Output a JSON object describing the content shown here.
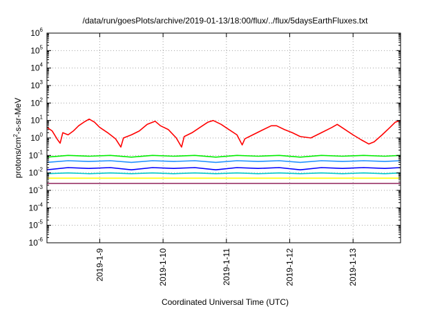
{
  "chart_data": {
    "type": "line",
    "title": "/data/run/goesPlots/archive/2019-01-13/18:00/flux/../flux/5daysEarthFluxes.txt",
    "xlabel": "Coordinated Universal Time (UTC)",
    "ylabel": {
      "base": "protons/cm",
      "sup": "2",
      "rest": "-s-sr-MeV"
    },
    "yscale": "log",
    "ylim": [
      1e-06,
      1000000.0
    ],
    "xlim": [
      "2019-01-08T04:00",
      "2019-01-13T18:00"
    ],
    "grid": true,
    "legend": "none",
    "yticks": [
      {
        "base": "10",
        "exp": "-6"
      },
      {
        "base": "10",
        "exp": "-5"
      },
      {
        "base": "10",
        "exp": "-4"
      },
      {
        "base": "10",
        "exp": "-3"
      },
      {
        "base": "10",
        "exp": "-2"
      },
      {
        "base": "10",
        "exp": "-1"
      },
      {
        "base": "10",
        "exp": "0"
      },
      {
        "base": "10",
        "exp": "1"
      },
      {
        "base": "10",
        "exp": "2"
      },
      {
        "base": "10",
        "exp": "3"
      },
      {
        "base": "10",
        "exp": "4"
      },
      {
        "base": "10",
        "exp": "5"
      },
      {
        "base": "10",
        "exp": "6"
      }
    ],
    "xticks": [
      "2019-1-9",
      "2019-1-10",
      "2019-1-11",
      "2019-1-12",
      "2019-1-13"
    ],
    "series": [
      {
        "color": "#ff0000",
        "points": [
          [
            "2019-01-08T04:00",
            4.0
          ],
          [
            "2019-01-08T06:00",
            2.5
          ],
          [
            "2019-01-08T08:00",
            0.8
          ],
          [
            "2019-01-08T09:00",
            0.5
          ],
          [
            "2019-01-08T10:00",
            2.0
          ],
          [
            "2019-01-08T12:00",
            1.5
          ],
          [
            "2019-01-08T14:00",
            2.5
          ],
          [
            "2019-01-08T16:00",
            5.0
          ],
          [
            "2019-01-08T18:00",
            8.0
          ],
          [
            "2019-01-08T20:00",
            12.0
          ],
          [
            "2019-01-08T22:00",
            8.0
          ],
          [
            "2019-01-09T00:00",
            4.0
          ],
          [
            "2019-01-09T03:00",
            2.0
          ],
          [
            "2019-01-09T06:00",
            0.9
          ],
          [
            "2019-01-09T08:00",
            0.3
          ],
          [
            "2019-01-09T09:00",
            1.0
          ],
          [
            "2019-01-09T12:00",
            1.5
          ],
          [
            "2019-01-09T15:00",
            2.5
          ],
          [
            "2019-01-09T18:00",
            6.0
          ],
          [
            "2019-01-09T21:00",
            9.0
          ],
          [
            "2019-01-09T23:00",
            5.0
          ],
          [
            "2019-01-10T02:00",
            3.0
          ],
          [
            "2019-01-10T05:00",
            1.0
          ],
          [
            "2019-01-10T07:00",
            0.3
          ],
          [
            "2019-01-10T08:00",
            1.2
          ],
          [
            "2019-01-10T11:00",
            2.0
          ],
          [
            "2019-01-10T14:00",
            4.0
          ],
          [
            "2019-01-10T17:00",
            8.0
          ],
          [
            "2019-01-10T19:00",
            10.0
          ],
          [
            "2019-01-10T22:00",
            6.0
          ],
          [
            "2019-01-11T01:00",
            3.0
          ],
          [
            "2019-01-11T04:00",
            1.5
          ],
          [
            "2019-01-11T06:00",
            0.4
          ],
          [
            "2019-01-11T07:00",
            0.9
          ],
          [
            "2019-01-11T10:00",
            1.5
          ],
          [
            "2019-01-11T14:00",
            3.0
          ],
          [
            "2019-01-11T17:00",
            5.0
          ],
          [
            "2019-01-11T19:00",
            5.0
          ],
          [
            "2019-01-11T22:00",
            3.0
          ],
          [
            "2019-01-12T01:00",
            2.0
          ],
          [
            "2019-01-12T04:00",
            1.2
          ],
          [
            "2019-01-12T08:00",
            1.0
          ],
          [
            "2019-01-12T12:00",
            2.0
          ],
          [
            "2019-01-12T16:00",
            4.0
          ],
          [
            "2019-01-12T18:00",
            6.0
          ],
          [
            "2019-01-12T21:00",
            3.0
          ],
          [
            "2019-01-13T00:00",
            1.5
          ],
          [
            "2019-01-13T03:00",
            0.8
          ],
          [
            "2019-01-13T06:00",
            0.45
          ],
          [
            "2019-01-13T08:00",
            0.6
          ],
          [
            "2019-01-13T11:00",
            1.5
          ],
          [
            "2019-01-13T14:00",
            4.0
          ],
          [
            "2019-01-13T16:00",
            8.0
          ],
          [
            "2019-01-13T18:00",
            10.0
          ]
        ]
      },
      {
        "color": "#00ee00",
        "points": [
          [
            "2019-01-08T04:00",
            0.08
          ],
          [
            "2019-01-08T12:00",
            0.1
          ],
          [
            "2019-01-08T20:00",
            0.09
          ],
          [
            "2019-01-09T04:00",
            0.1
          ],
          [
            "2019-01-09T12:00",
            0.08
          ],
          [
            "2019-01-09T20:00",
            0.1
          ],
          [
            "2019-01-10T04:00",
            0.09
          ],
          [
            "2019-01-10T12:00",
            0.1
          ],
          [
            "2019-01-10T20:00",
            0.08
          ],
          [
            "2019-01-11T04:00",
            0.1
          ],
          [
            "2019-01-11T12:00",
            0.09
          ],
          [
            "2019-01-11T20:00",
            0.1
          ],
          [
            "2019-01-12T04:00",
            0.08
          ],
          [
            "2019-01-12T12:00",
            0.1
          ],
          [
            "2019-01-12T20:00",
            0.09
          ],
          [
            "2019-01-13T04:00",
            0.1
          ],
          [
            "2019-01-13T12:00",
            0.09
          ],
          [
            "2019-01-13T18:00",
            0.1
          ]
        ]
      },
      {
        "color": "#1e90ff",
        "points": [
          [
            "2019-01-08T04:00",
            0.04
          ],
          [
            "2019-01-08T12:00",
            0.05
          ],
          [
            "2019-01-08T20:00",
            0.045
          ],
          [
            "2019-01-09T04:00",
            0.05
          ],
          [
            "2019-01-09T12:00",
            0.04
          ],
          [
            "2019-01-09T20:00",
            0.05
          ],
          [
            "2019-01-10T04:00",
            0.045
          ],
          [
            "2019-01-10T12:00",
            0.05
          ],
          [
            "2019-01-10T20:00",
            0.04
          ],
          [
            "2019-01-11T04:00",
            0.05
          ],
          [
            "2019-01-11T12:00",
            0.045
          ],
          [
            "2019-01-11T20:00",
            0.05
          ],
          [
            "2019-01-12T04:00",
            0.04
          ],
          [
            "2019-01-12T12:00",
            0.05
          ],
          [
            "2019-01-12T20:00",
            0.045
          ],
          [
            "2019-01-13T04:00",
            0.05
          ],
          [
            "2019-01-13T12:00",
            0.045
          ],
          [
            "2019-01-13T18:00",
            0.05
          ]
        ]
      },
      {
        "color": "#0000ff",
        "points": [
          [
            "2019-01-08T04:00",
            0.015
          ],
          [
            "2019-01-08T12:00",
            0.02
          ],
          [
            "2019-01-08T20:00",
            0.018
          ],
          [
            "2019-01-09T04:00",
            0.02
          ],
          [
            "2019-01-09T12:00",
            0.015
          ],
          [
            "2019-01-09T20:00",
            0.02
          ],
          [
            "2019-01-10T04:00",
            0.018
          ],
          [
            "2019-01-10T12:00",
            0.02
          ],
          [
            "2019-01-10T20:00",
            0.015
          ],
          [
            "2019-01-11T04:00",
            0.02
          ],
          [
            "2019-01-11T12:00",
            0.018
          ],
          [
            "2019-01-11T20:00",
            0.02
          ],
          [
            "2019-01-12T04:00",
            0.015
          ],
          [
            "2019-01-12T12:00",
            0.02
          ],
          [
            "2019-01-12T20:00",
            0.018
          ],
          [
            "2019-01-13T04:00",
            0.02
          ],
          [
            "2019-01-13T12:00",
            0.018
          ],
          [
            "2019-01-13T18:00",
            0.02
          ]
        ]
      },
      {
        "color": "#00c8c8",
        "points": [
          [
            "2019-01-08T04:00",
            0.009
          ],
          [
            "2019-01-08T12:00",
            0.01
          ],
          [
            "2019-01-08T20:00",
            0.009
          ],
          [
            "2019-01-09T04:00",
            0.01
          ],
          [
            "2019-01-09T12:00",
            0.009
          ],
          [
            "2019-01-09T20:00",
            0.01
          ],
          [
            "2019-01-10T04:00",
            0.009
          ],
          [
            "2019-01-10T12:00",
            0.01
          ],
          [
            "2019-01-10T20:00",
            0.009
          ],
          [
            "2019-01-11T04:00",
            0.01
          ],
          [
            "2019-01-11T12:00",
            0.009
          ],
          [
            "2019-01-11T20:00",
            0.01
          ],
          [
            "2019-01-12T04:00",
            0.009
          ],
          [
            "2019-01-12T12:00",
            0.01
          ],
          [
            "2019-01-12T20:00",
            0.009
          ],
          [
            "2019-01-13T04:00",
            0.01
          ],
          [
            "2019-01-13T12:00",
            0.009
          ],
          [
            "2019-01-13T18:00",
            0.01
          ]
        ]
      },
      {
        "color": "#ffff00",
        "points": [
          [
            "2019-01-08T04:00",
            0.005
          ],
          [
            "2019-01-08T12:00",
            0.005
          ],
          [
            "2019-01-08T20:00",
            0.005
          ],
          [
            "2019-01-09T04:00",
            0.005
          ],
          [
            "2019-01-09T12:00",
            0.005
          ],
          [
            "2019-01-09T20:00",
            0.005
          ],
          [
            "2019-01-10T04:00",
            0.005
          ],
          [
            "2019-01-10T12:00",
            0.005
          ],
          [
            "2019-01-10T20:00",
            0.005
          ],
          [
            "2019-01-11T04:00",
            0.005
          ],
          [
            "2019-01-11T12:00",
            0.005
          ],
          [
            "2019-01-11T20:00",
            0.005
          ],
          [
            "2019-01-12T04:00",
            0.005
          ],
          [
            "2019-01-12T12:00",
            0.005
          ],
          [
            "2019-01-12T20:00",
            0.005
          ],
          [
            "2019-01-13T04:00",
            0.005
          ],
          [
            "2019-01-13T12:00",
            0.005
          ],
          [
            "2019-01-13T18:00",
            0.005
          ]
        ]
      },
      {
        "color": "#993366",
        "points": [
          [
            "2019-01-08T04:00",
            0.0025
          ],
          [
            "2019-01-08T12:00",
            0.0025
          ],
          [
            "2019-01-08T20:00",
            0.0025
          ],
          [
            "2019-01-09T04:00",
            0.0025
          ],
          [
            "2019-01-09T12:00",
            0.0025
          ],
          [
            "2019-01-09T20:00",
            0.0025
          ],
          [
            "2019-01-10T04:00",
            0.0025
          ],
          [
            "2019-01-10T12:00",
            0.0025
          ],
          [
            "2019-01-10T20:00",
            0.0025
          ],
          [
            "2019-01-11T04:00",
            0.0025
          ],
          [
            "2019-01-11T12:00",
            0.0025
          ],
          [
            "2019-01-11T20:00",
            0.0025
          ],
          [
            "2019-01-12T04:00",
            0.0025
          ],
          [
            "2019-01-12T12:00",
            0.0025
          ],
          [
            "2019-01-12T20:00",
            0.0025
          ],
          [
            "2019-01-13T04:00",
            0.0025
          ],
          [
            "2019-01-13T12:00",
            0.0025
          ],
          [
            "2019-01-13T18:00",
            0.0025
          ]
        ]
      }
    ]
  }
}
